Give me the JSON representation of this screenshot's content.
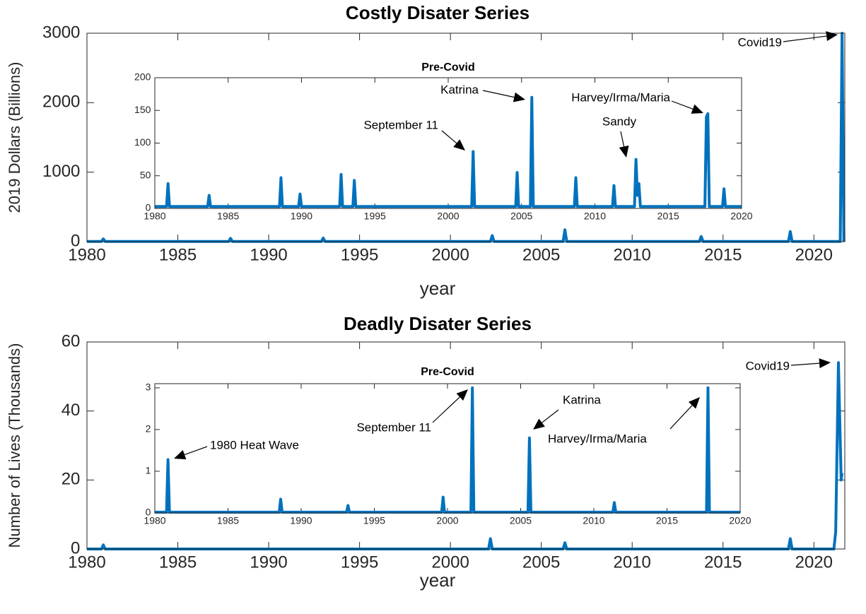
{
  "chart_data": [
    {
      "type": "line",
      "title": "Costly Disater Series",
      "xlabel": "year",
      "ylabel": "2019 Dollars (Billions)",
      "color": "#0072bd",
      "xlim": [
        1980,
        2021.7
      ],
      "xticks": [
        1980,
        1985,
        1990,
        1995,
        2000,
        2005,
        2010,
        2015,
        2020
      ],
      "ylim": [
        0,
        3000
      ],
      "yticks": [
        0,
        1000,
        2000,
        3000
      ],
      "x": [
        1980,
        1980.8,
        1980.9,
        1981,
        1987.8,
        1987.9,
        1988,
        1992.9,
        1993,
        1993.1,
        2002.2,
        2002.3,
        2002.4,
        2006.2,
        2006.3,
        2006.4,
        2013.7,
        2013.8,
        2013.9,
        2018.6,
        2018.7,
        2018.8,
        2021.45,
        2021.55,
        2021.65
      ],
      "values": [
        3,
        3,
        40,
        3,
        3,
        47,
        3,
        3,
        52,
        3,
        3,
        87,
        3,
        3,
        170,
        3,
        3,
        75,
        3,
        3,
        145,
        3,
        3,
        3000,
        0
      ],
      "annotations": [
        "Covid19"
      ]
    },
    {
      "type": "line",
      "title": "Pre-Covid",
      "color": "#0072bd",
      "xlim": [
        1980,
        2020
      ],
      "xticks": [
        1980,
        1985,
        1990,
        1995,
        2000,
        2005,
        2010,
        2015,
        2020
      ],
      "ylim": [
        0,
        200
      ],
      "yticks": [
        0,
        50,
        100,
        150,
        200
      ],
      "x": [
        1980,
        1980.8,
        1980.9,
        1981,
        1983.6,
        1983.7,
        1983.8,
        1988.5,
        1988.6,
        1988.7,
        1989.8,
        1989.9,
        1990,
        1992.6,
        1992.7,
        1992.8,
        1993.5,
        1993.6,
        1993.7,
        2001.6,
        2001.7,
        2001.8,
        2004.6,
        2004.7,
        2004.8,
        2005.6,
        2005.7,
        2005.8,
        2008.6,
        2008.7,
        2008.8,
        2011.2,
        2011.3,
        2011.4,
        2012.7,
        2012.8,
        2012.9,
        2013,
        2013.1,
        2017.5,
        2017.6,
        2017.7,
        2017.8,
        2018.7,
        2018.8,
        2018.9,
        2020
      ],
      "values": [
        3,
        3,
        38,
        3,
        3,
        20,
        3,
        3,
        47,
        3,
        3,
        22,
        3,
        3,
        52,
        3,
        3,
        43,
        3,
        3,
        87,
        3,
        3,
        55,
        3,
        3,
        170,
        3,
        3,
        47,
        3,
        3,
        35,
        3,
        3,
        75,
        20,
        38,
        3,
        3,
        140,
        145,
        3,
        3,
        30,
        3,
        3
      ],
      "annotations": [
        "September 11",
        "Katrina",
        "Harvey/Irma/Maria",
        "Sandy"
      ]
    },
    {
      "type": "line",
      "title": "Deadly Disater Series",
      "xlabel": "year",
      "ylabel": "Number of Lives (Thousands)",
      "color": "#0072bd",
      "xlim": [
        1980,
        2021.7
      ],
      "xticks": [
        1980,
        1985,
        1990,
        1995,
        2000,
        2005,
        2010,
        2015,
        2020
      ],
      "ylim": [
        0,
        60
      ],
      "yticks": [
        0,
        20,
        40,
        60
      ],
      "x": [
        1980,
        1980.8,
        1980.9,
        1981,
        2002.1,
        2002.2,
        2002.3,
        2006.2,
        2006.3,
        2006.4,
        2018.6,
        2018.7,
        2018.8,
        2021.1,
        2021.2,
        2021.35,
        2021.5,
        2021.55
      ],
      "values": [
        0,
        0,
        1.2,
        0,
        0,
        3,
        0,
        0,
        1.8,
        0,
        0,
        3,
        0,
        0,
        5,
        54,
        20,
        22
      ],
      "annotations": [
        "Covid19"
      ]
    },
    {
      "type": "line",
      "title": "Pre-Covid",
      "color": "#0072bd",
      "xlim": [
        1980,
        2020
      ],
      "xticks": [
        1980,
        1985,
        1990,
        1995,
        2000,
        2005,
        2010,
        2015,
        2020
      ],
      "ylim": [
        0,
        3.1
      ],
      "yticks": [
        0,
        1,
        2,
        3
      ],
      "x": [
        1980,
        1980.8,
        1980.9,
        1981,
        1988.5,
        1988.6,
        1988.7,
        1993.1,
        1993.2,
        1993.3,
        1999.6,
        1999.7,
        1999.8,
        2001.6,
        2001.7,
        2001.8,
        2005.5,
        2005.6,
        2005.7,
        2011.3,
        2011.4,
        2011.5,
        2017.7,
        2017.8,
        2017.9,
        2020
      ],
      "values": [
        0.02,
        0.02,
        1.28,
        0.02,
        0.02,
        0.33,
        0.02,
        0.02,
        0.18,
        0.02,
        0.02,
        0.38,
        0.02,
        0.02,
        3.0,
        0.02,
        0.02,
        1.8,
        0.02,
        0.02,
        0.25,
        0.02,
        0.02,
        3.0,
        0.02,
        0.02
      ],
      "annotations": [
        "1980 Heat Wave",
        "September 11",
        "Katrina",
        "Harvey/Irma/Maria"
      ]
    }
  ]
}
